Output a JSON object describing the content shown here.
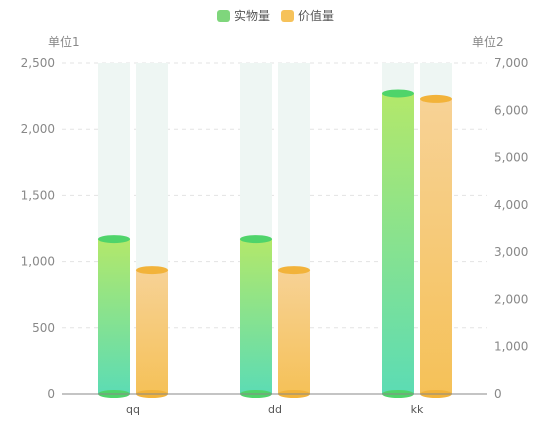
{
  "chart_data": {
    "type": "bar",
    "categories": [
      "qq",
      "dd",
      "kk"
    ],
    "legend": {
      "position": "top-center",
      "items": [
        {
          "name": "实物量",
          "color": "#7fd67c"
        },
        {
          "name": "价值量",
          "color": "#f6c25a"
        }
      ]
    },
    "y_axes": {
      "left": {
        "unit_label": "单位1",
        "min": 0,
        "max": 2500,
        "ticks": [
          0,
          500,
          1000,
          1500,
          2000,
          2500
        ],
        "tick_labels": [
          "0",
          "500",
          "1,000",
          "1,500",
          "2,000",
          "2,500"
        ]
      },
      "right": {
        "unit_label": "单位2",
        "min": 0,
        "max": 7000,
        "ticks": [
          0,
          1000,
          2000,
          3000,
          4000,
          5000,
          6000,
          7000
        ],
        "tick_labels": [
          "0",
          "1,000",
          "2,000",
          "3,000",
          "4,000",
          "5,000",
          "6,000",
          "7,000"
        ]
      }
    },
    "series": [
      {
        "name": "实物量",
        "axis": "left",
        "values": [
          1170,
          1170,
          2270
        ]
      },
      {
        "name": "价值量",
        "axis": "right",
        "values": [
          2620,
          2620,
          6240
        ]
      }
    ],
    "grid": true,
    "background_bars": true,
    "colors": {
      "series1_top": "#b3e86a",
      "series1_bottom": "#5cdcb4",
      "series1_cap": "#4fd46a",
      "series2_top": "#f7d296",
      "series2_bottom": "#f5c158",
      "series2_cap": "#f2b33a",
      "background_bar": "#eef6f3",
      "grid": "#e3e3e3",
      "axis_text": "#888888",
      "legend_text": "#555555"
    }
  }
}
